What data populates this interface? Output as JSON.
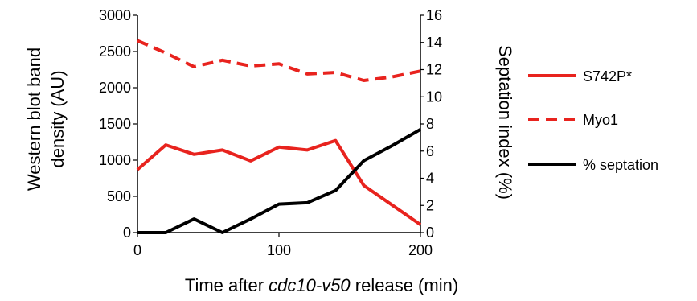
{
  "chart_data": {
    "type": "line",
    "x": [
      0,
      20,
      40,
      60,
      80,
      100,
      120,
      140,
      160,
      180,
      200
    ],
    "x_ticks": [
      "0",
      "100",
      "200"
    ],
    "xlim": [
      0,
      200
    ],
    "xlabel_prefix": "Time after ",
    "xlabel_italic": "cdc10-v50",
    "xlabel_suffix": " release (min)",
    "ylabel_left_line1": "Western blot band",
    "ylabel_left_line2": "density (AU)",
    "ylim_left": [
      0,
      3000
    ],
    "y_left_ticks": [
      "0",
      "500",
      "1000",
      "1500",
      "2000",
      "2500",
      "3000"
    ],
    "ylabel_right": "Septation index (%)",
    "ylim_right": [
      0,
      16
    ],
    "y_right_ticks": [
      "0",
      "2",
      "4",
      "6",
      "8",
      "10",
      "12",
      "14",
      "16"
    ],
    "legend_position": "right",
    "series": [
      {
        "name": "S742P*",
        "axis": "left",
        "color": "#e8231e",
        "style": "solid",
        "values": [
          870,
          1210,
          1080,
          1140,
          990,
          1180,
          1140,
          1270,
          650,
          380,
          110
        ]
      },
      {
        "name": "Myo1",
        "axis": "left",
        "color": "#e8231e",
        "style": "dashed",
        "values": [
          2650,
          2480,
          2290,
          2380,
          2300,
          2330,
          2190,
          2210,
          2100,
          2150,
          2230
        ]
      },
      {
        "name": "% septation",
        "axis": "right",
        "color": "#000000",
        "style": "solid",
        "values": [
          0,
          0,
          1.0,
          0,
          1.0,
          2.1,
          2.2,
          3.1,
          5.3,
          6.4,
          7.6
        ]
      }
    ]
  }
}
